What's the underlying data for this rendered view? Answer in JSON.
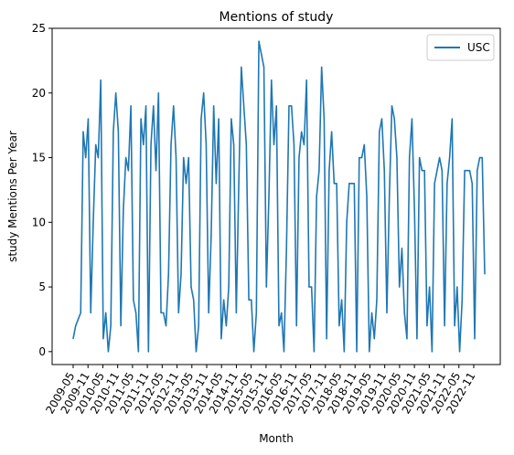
{
  "chart_data": {
    "type": "line",
    "title": "Mentions of study",
    "xlabel": "Month",
    "ylabel": "study Mentions Per Year",
    "ylim": [
      -1,
      25
    ],
    "yticks": [
      0,
      5,
      10,
      15,
      20,
      25
    ],
    "grid": false,
    "legend_position": "top-right",
    "color": "#1f77b4",
    "x_tick_labels": [
      "2009-05",
      "2009-11",
      "2010-05",
      "2010-11",
      "2011-05",
      "2011-11",
      "2012-05",
      "2012-11",
      "2013-05",
      "2013-11",
      "2014-05",
      "2014-11",
      "2015-05",
      "2015-11",
      "2016-05",
      "2016-11",
      "2017-05",
      "2017-11",
      "2018-05",
      "2018-11",
      "2019-05",
      "2019-11",
      "2020-05",
      "2020-11",
      "2021-05",
      "2021-11",
      "2022-05",
      "2022-11"
    ],
    "series": [
      {
        "name": "USC",
        "values": [
          1,
          2,
          2.5,
          3,
          17,
          15,
          18,
          3,
          10,
          16,
          15,
          21,
          1,
          3,
          0,
          2,
          17,
          20,
          17,
          2,
          11,
          15,
          14,
          19,
          4,
          3,
          0,
          18,
          16,
          19,
          0,
          16,
          19,
          14,
          20,
          3,
          3,
          2,
          6,
          16,
          19,
          15,
          3,
          6,
          15,
          13,
          15,
          5,
          4,
          0,
          2,
          18,
          20,
          16,
          3,
          9,
          19,
          13,
          18,
          1,
          4,
          2,
          5,
          18,
          16,
          3,
          13,
          22,
          19,
          16,
          4,
          4,
          0,
          3,
          24,
          23,
          22,
          5,
          12,
          21,
          16,
          19,
          2,
          3,
          0,
          8,
          19,
          19,
          16,
          2,
          15,
          17,
          16,
          21,
          5,
          5,
          0,
          12,
          14,
          22,
          18,
          1,
          14,
          17,
          13,
          13,
          2,
          4,
          0,
          10,
          13,
          13,
          13,
          0,
          15,
          15,
          16,
          12,
          0,
          3,
          1,
          4,
          17,
          18,
          14,
          3,
          12,
          19,
          18,
          15,
          5,
          8,
          3,
          1,
          15,
          18,
          11,
          1,
          15,
          14,
          14,
          2,
          5,
          0,
          13,
          14,
          15,
          14,
          2,
          13,
          15,
          18,
          2,
          5,
          0,
          4,
          14,
          14,
          14,
          13,
          1,
          14,
          15,
          15,
          6
        ]
      }
    ]
  }
}
